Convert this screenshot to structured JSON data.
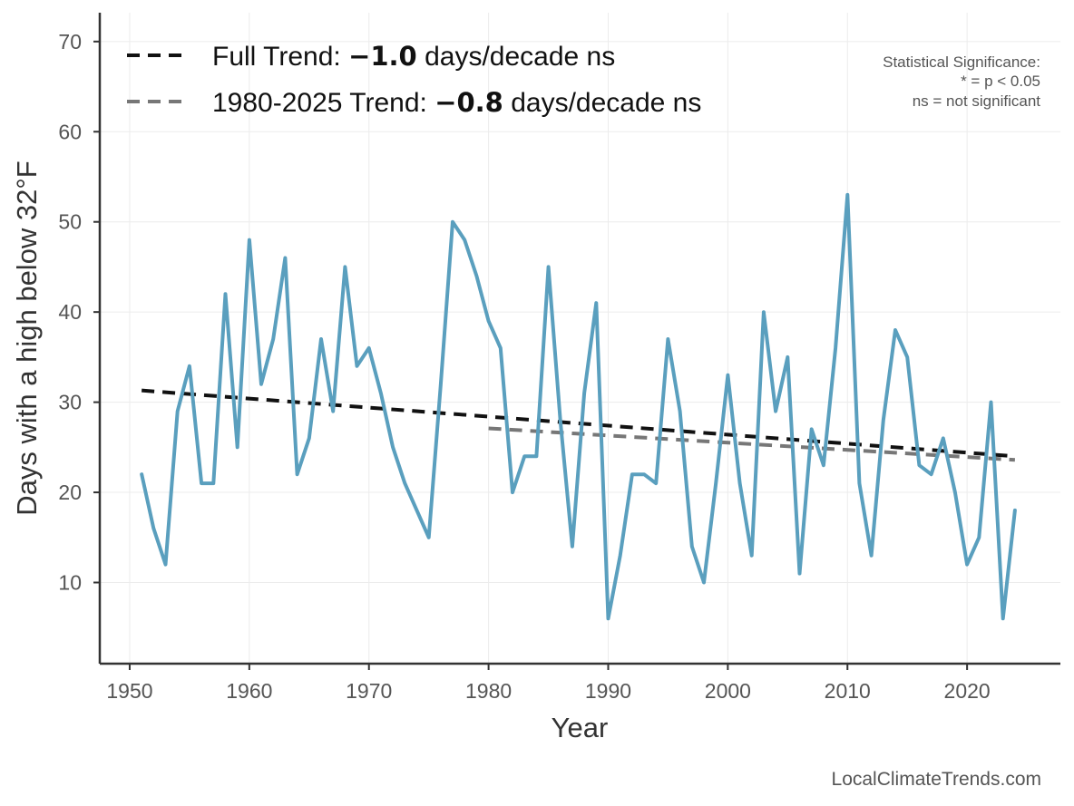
{
  "chart_data": {
    "type": "line",
    "xlabel": "Year",
    "ylabel": "Days with a high below 32°F",
    "xlim": [
      1947.5,
      2027.8
    ],
    "ylim": [
      1,
      73.2
    ],
    "x_ticks": [
      1950,
      1960,
      1970,
      1980,
      1990,
      2000,
      2010,
      2020
    ],
    "y_ticks": [
      10,
      20,
      30,
      40,
      50,
      60,
      70
    ],
    "grid": true,
    "legend_position": "top-left",
    "series": [
      {
        "color": "#5a9fbe",
        "x": [
          1951,
          1952,
          1953,
          1954,
          1955,
          1956,
          1957,
          1958,
          1959,
          1960,
          1961,
          1962,
          1963,
          1964,
          1965,
          1966,
          1967,
          1968,
          1969,
          1970,
          1971,
          1972,
          1973,
          1974,
          1975,
          1976,
          1977,
          1978,
          1979,
          1980,
          1981,
          1982,
          1983,
          1984,
          1985,
          1986,
          1987,
          1988,
          1989,
          1990,
          1991,
          1992,
          1993,
          1994,
          1995,
          1996,
          1997,
          1998,
          1999,
          2000,
          2001,
          2002,
          2003,
          2004,
          2005,
          2006,
          2007,
          2008,
          2009,
          2010,
          2011,
          2012,
          2013,
          2014,
          2015,
          2016,
          2017,
          2018,
          2019,
          2020,
          2021,
          2022,
          2023,
          2024
        ],
        "y": [
          22,
          16,
          12,
          29,
          34,
          21,
          21,
          42,
          25,
          48,
          32,
          37,
          46,
          22,
          26,
          37,
          29,
          45,
          34,
          36,
          31,
          25,
          21,
          18,
          15,
          32,
          50,
          48,
          44,
          39,
          36,
          20,
          24,
          24,
          45,
          28,
          14,
          31,
          41,
          6,
          13,
          22,
          22,
          21,
          37,
          29,
          14,
          10,
          21,
          33,
          21,
          13,
          40,
          29,
          35,
          11,
          27,
          23,
          36,
          53,
          21,
          13,
          28,
          38,
          35,
          23,
          22,
          26,
          20,
          12,
          15,
          30,
          6,
          18
        ]
      }
    ],
    "trend_lines": [
      {
        "name": "Full Trend",
        "x": [
          1951,
          2024
        ],
        "y": [
          31.3,
          24.0
        ],
        "color": "#111111",
        "dash": "dashed"
      },
      {
        "name": "1980-2025 Trend",
        "x": [
          1980,
          2024
        ],
        "y": [
          27.1,
          23.6
        ],
        "color": "#777777",
        "dash": "dashed"
      }
    ]
  },
  "legend": {
    "full": {
      "prefix": "Full Trend: ",
      "value": "−1.0",
      "suffix": " days/decade ns"
    },
    "recent": {
      "prefix": "1980-2025 Trend: ",
      "value": "−0.8",
      "suffix": " days/decade ns"
    }
  },
  "significance": {
    "line1": "Statistical Significance:",
    "line2": "* = p < 0.05",
    "line3": "ns = not significant"
  },
  "footer": "LocalClimateTrends.com"
}
